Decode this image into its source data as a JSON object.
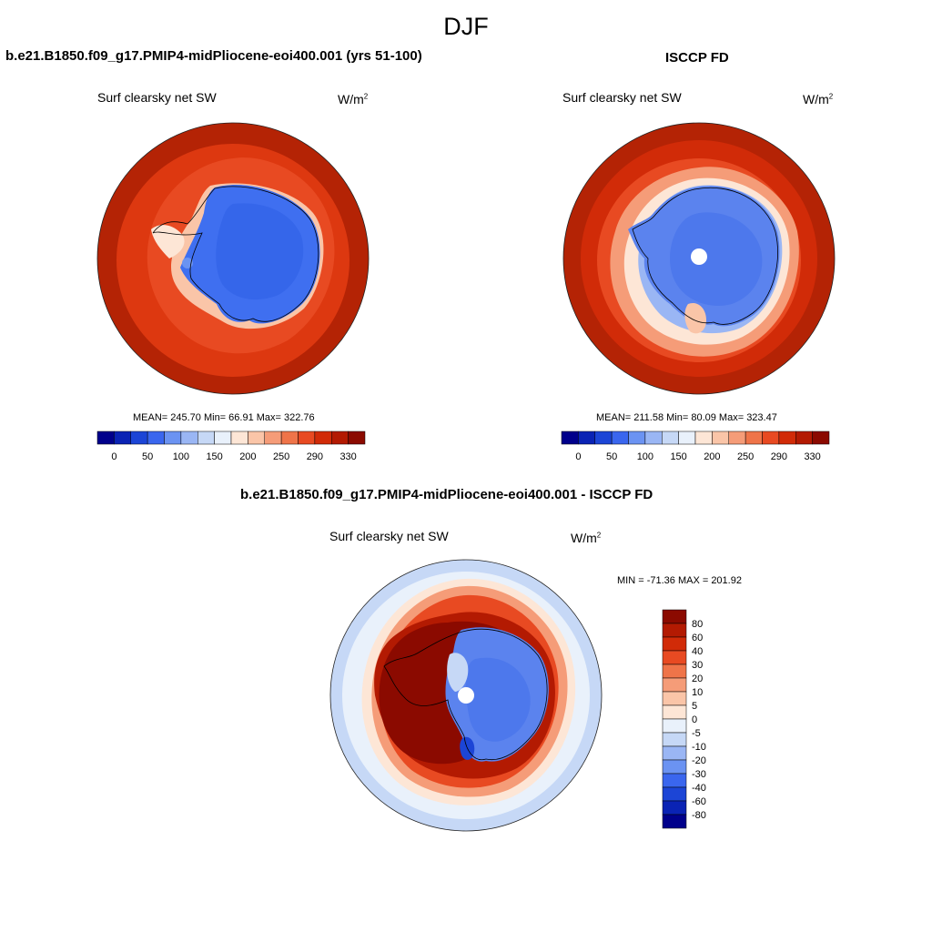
{
  "season": "DJF",
  "panels": [
    {
      "title": "b.e21.B1850.f09_g17.PMIP4-midPliocene-eoi400.001 (yrs 51-100)",
      "variable": "Surf clearsky net SW",
      "units_base": "W/m",
      "units_exp": "2",
      "stats": "MEAN= 245.70  Min=  66.91  Max= 322.76"
    },
    {
      "title": "ISCCP FD",
      "variable": "Surf clearsky net SW",
      "units_base": "W/m",
      "units_exp": "2",
      "stats": "MEAN= 211.58  Min=  80.09  Max= 323.47"
    },
    {
      "title": "b.e21.B1850.f09_g17.PMIP4-midPliocene-eoi400.001 - ISCCP FD",
      "variable": "Surf clearsky net SW",
      "units_base": "W/m",
      "units_exp": "2",
      "stats": "MIN = -71.36 MAX = 201.92"
    }
  ],
  "colorbar_abs": {
    "colors": [
      "#00008b",
      "#0a23b4",
      "#1c45d6",
      "#3a66ee",
      "#6b93f2",
      "#9ab6f4",
      "#c6d8f6",
      "#e9f1fb",
      "#fde6d6",
      "#fac5a8",
      "#f59c78",
      "#ef7449",
      "#e84a22",
      "#d12b08",
      "#b31a02",
      "#8b0a00"
    ],
    "tick_labels": [
      "0",
      "50",
      "100",
      "150",
      "200",
      "250",
      "290",
      "330"
    ]
  },
  "colorbar_diff": {
    "colors": [
      "#8b0a00",
      "#b31a02",
      "#d12b08",
      "#e84a22",
      "#ef7449",
      "#f59c78",
      "#fac5a8",
      "#fde6d6",
      "#e9f1fb",
      "#c6d8f6",
      "#9ab6f4",
      "#6b93f2",
      "#3a66ee",
      "#1c45d6",
      "#0a23b4",
      "#00008b"
    ],
    "tick_labels": [
      "80",
      "60",
      "40",
      "30",
      "20",
      "10",
      "5",
      "0",
      "-5",
      "-10",
      "-20",
      "-30",
      "-40",
      "-60",
      "-80"
    ]
  }
}
